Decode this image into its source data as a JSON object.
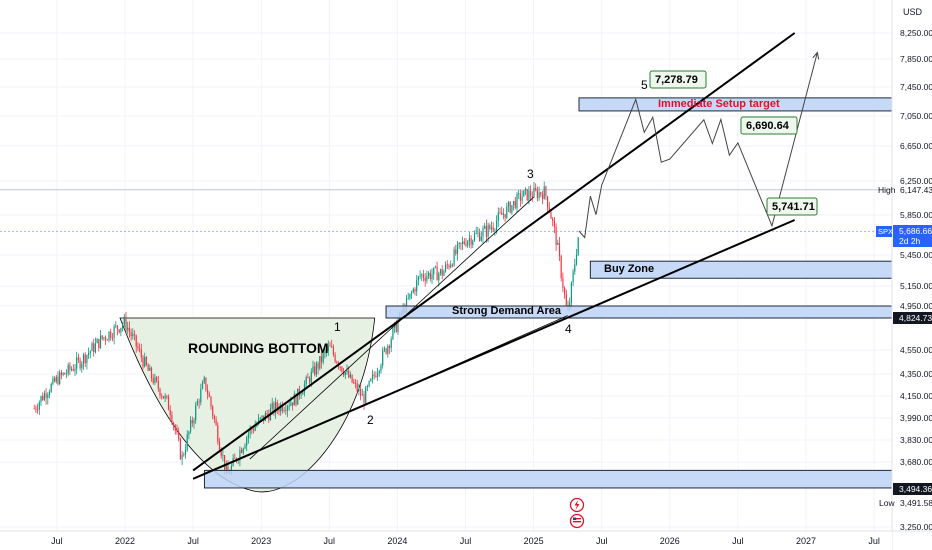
{
  "currency_label": "USD",
  "symbol": "SPX",
  "colors": {
    "up": "#089981",
    "down": "#f23645",
    "zone_fill": "#bcd4f7",
    "zone_stroke": "#1e2a3a",
    "label_fill": "#edf7ee",
    "label_stroke": "#2e7d32",
    "rounding_fill": "#e6f0e3",
    "wave_line": "#444444",
    "symbol_tag": "#2962ff",
    "price_tag": "#131722",
    "high_line": "#c0c6d0",
    "red_text": "#e0102a"
  },
  "chart_data": {
    "type": "candlestick",
    "title": "",
    "x_ticks": [
      "Jul",
      "2022",
      "Jul",
      "2023",
      "Jul",
      "2024",
      "Jul",
      "2025",
      "Jul",
      "2026",
      "Jul",
      "2027",
      "Jul"
    ],
    "y_ticks": [
      "8,250.00",
      "7,850.00",
      "7,450.00",
      "7,050.00",
      "6,650.00",
      "6,250.00",
      "5,850.00",
      "5,450.00",
      "5,150.00",
      "4,950.00",
      "4,550.00",
      "4,350.00",
      "4,150.00",
      "3,990.00",
      "3,830.00",
      "3,680.00",
      "3,250.00"
    ],
    "series_anchors": [
      {
        "t": "2021-05",
        "price": 4060
      },
      {
        "t": "2021-07",
        "price": 4300
      },
      {
        "t": "2021-09",
        "price": 4450
      },
      {
        "t": "2021-11",
        "price": 4650
      },
      {
        "t": "2022-01",
        "price": 4790
      },
      {
        "t": "2022-03",
        "price": 4380
      },
      {
        "t": "2022-05",
        "price": 4050
      },
      {
        "t": "2022-06",
        "price": 3700
      },
      {
        "t": "2022-08",
        "price": 4280
      },
      {
        "t": "2022-10",
        "price": 3580
      },
      {
        "t": "2022-12",
        "price": 3900
      },
      {
        "t": "2023-02",
        "price": 4050
      },
      {
        "t": "2023-04",
        "price": 4130
      },
      {
        "t": "2023-07",
        "price": 4570
      },
      {
        "t": "2023-10",
        "price": 4130
      },
      {
        "t": "2024-01",
        "price": 4780
      },
      {
        "t": "2024-03",
        "price": 5250
      },
      {
        "t": "2024-05",
        "price": 5280
      },
      {
        "t": "2024-07",
        "price": 5600
      },
      {
        "t": "2024-09",
        "price": 5700
      },
      {
        "t": "2024-12",
        "price": 6080
      },
      {
        "t": "2025-02",
        "price": 6120
      },
      {
        "t": "2025-03",
        "price": 5600
      },
      {
        "t": "2025-04",
        "price": 4850
      },
      {
        "t": "2025-05",
        "price": 5690
      }
    ],
    "zones": [
      {
        "name": "Immediate Setup target",
        "top": 7300,
        "bottom": 7120
      },
      {
        "name": "Buy Zone",
        "top": 5390,
        "bottom": 5225
      },
      {
        "name": "Strong Demand Area",
        "top": 4950,
        "bottom": 4824.73
      },
      {
        "name": "",
        "top": 3620,
        "bottom": 3494.36
      }
    ],
    "projection": [
      {
        "t": "2025-05",
        "price": 5690
      },
      {
        "t": "2025-07",
        "price": 6200
      },
      {
        "t": "2025-10",
        "price": 7278.79
      },
      {
        "t": "2026-01",
        "price": 6500
      },
      {
        "t": "2026-04",
        "price": 7000
      },
      {
        "t": "2026-07",
        "price": 6690.64
      },
      {
        "t": "2026-10",
        "price": 5741.71
      },
      {
        "t": "2027-02",
        "price": 7950
      }
    ],
    "wave_labels": [
      "1",
      "2",
      "3",
      "4",
      "5"
    ],
    "price_labels": [
      "7,278.79",
      "6,690.64",
      "5,741.71"
    ],
    "zone_labels": [
      "Immediate Setup target",
      "Buy Zone",
      "Strong Demand Area"
    ],
    "pattern_label": "ROUNDING BOTTOM",
    "last_price": "5,686.66",
    "last_time": "2d 2h",
    "high_label": "High",
    "high_value": "6,147.43",
    "low_label": "Low",
    "low_value": "3,491.58",
    "tag_4824": "4,824.73",
    "tag_3494": "3,494.36"
  }
}
